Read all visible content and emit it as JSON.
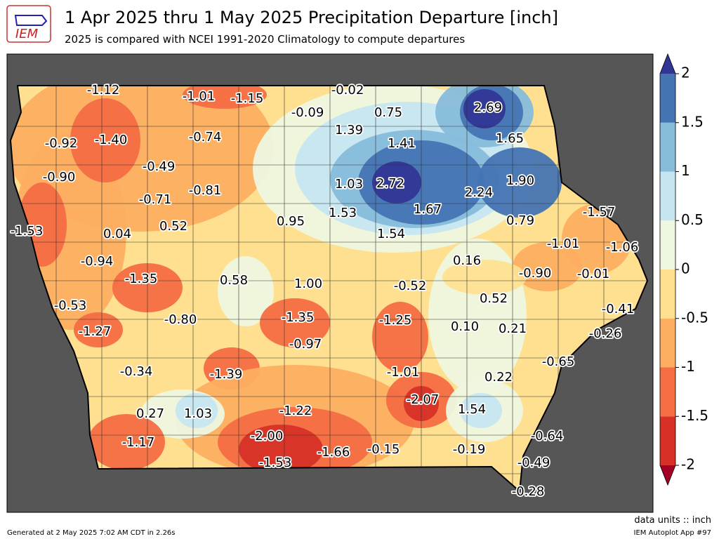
{
  "logo_text": "IEM",
  "title": "1 Apr 2025 thru 1 May 2025 Precipitation Departure [inch]",
  "subtitle": "2025 is compared with NCEI 1991-2020 Climatology to compute departures",
  "colorbar": {
    "lim": [
      -2,
      2
    ],
    "ticks": [
      -2,
      -1.5,
      -1,
      -0.5,
      0,
      0.5,
      1,
      1.5,
      2
    ],
    "colors": [
      "#d73027",
      "#f46d43",
      "#fdae61",
      "#fee090",
      "#eef7e0",
      "#c5e6f1",
      "#87bcdb",
      "#4574b3"
    ],
    "under": "#a50026",
    "over": "#313695"
  },
  "stations": [
    "-1.12",
    "-1.01",
    "-1.15",
    "-0.02",
    "-0.09",
    "0.75",
    "2.69",
    "-0.92",
    "-1.40",
    "-0.74",
    "1.39",
    "1.41",
    "1.65",
    "-0.90",
    "-0.49",
    "1.03",
    "2.72",
    "1.90",
    "-0.81",
    "-0.71",
    "2.24",
    "-1.57",
    "-1.53",
    "0.04",
    "0.52",
    "0.95",
    "1.53",
    "1.67",
    "0.79",
    "1.54",
    "-1.01",
    "-1.06",
    "-0.94",
    "0.16",
    "-0.90",
    "-0.01",
    "-1.35",
    "0.58",
    "1.00",
    "-0.52",
    "0.52",
    "-0.53",
    "-0.41",
    "-0.80",
    "-1.35",
    "-1.25",
    "0.10",
    "0.21",
    "-0.26",
    "-1.27",
    "-0.97",
    "-0.65",
    "-0.34",
    "-1.39",
    "-1.01",
    "0.22",
    "-2.07",
    "1.54",
    "0.27",
    "1.03",
    "-1.22",
    "-0.64",
    "-1.17",
    "-2.00",
    "-1.53",
    "-1.66",
    "-0.15",
    "-0.19",
    "-0.49",
    "-0.28"
  ],
  "units_note": "data units :: inch",
  "footer_left": "Generated at 2 May 2025 7:02 AM CDT in 2.26s",
  "footer_right": "IEM Autoplot App #97"
}
